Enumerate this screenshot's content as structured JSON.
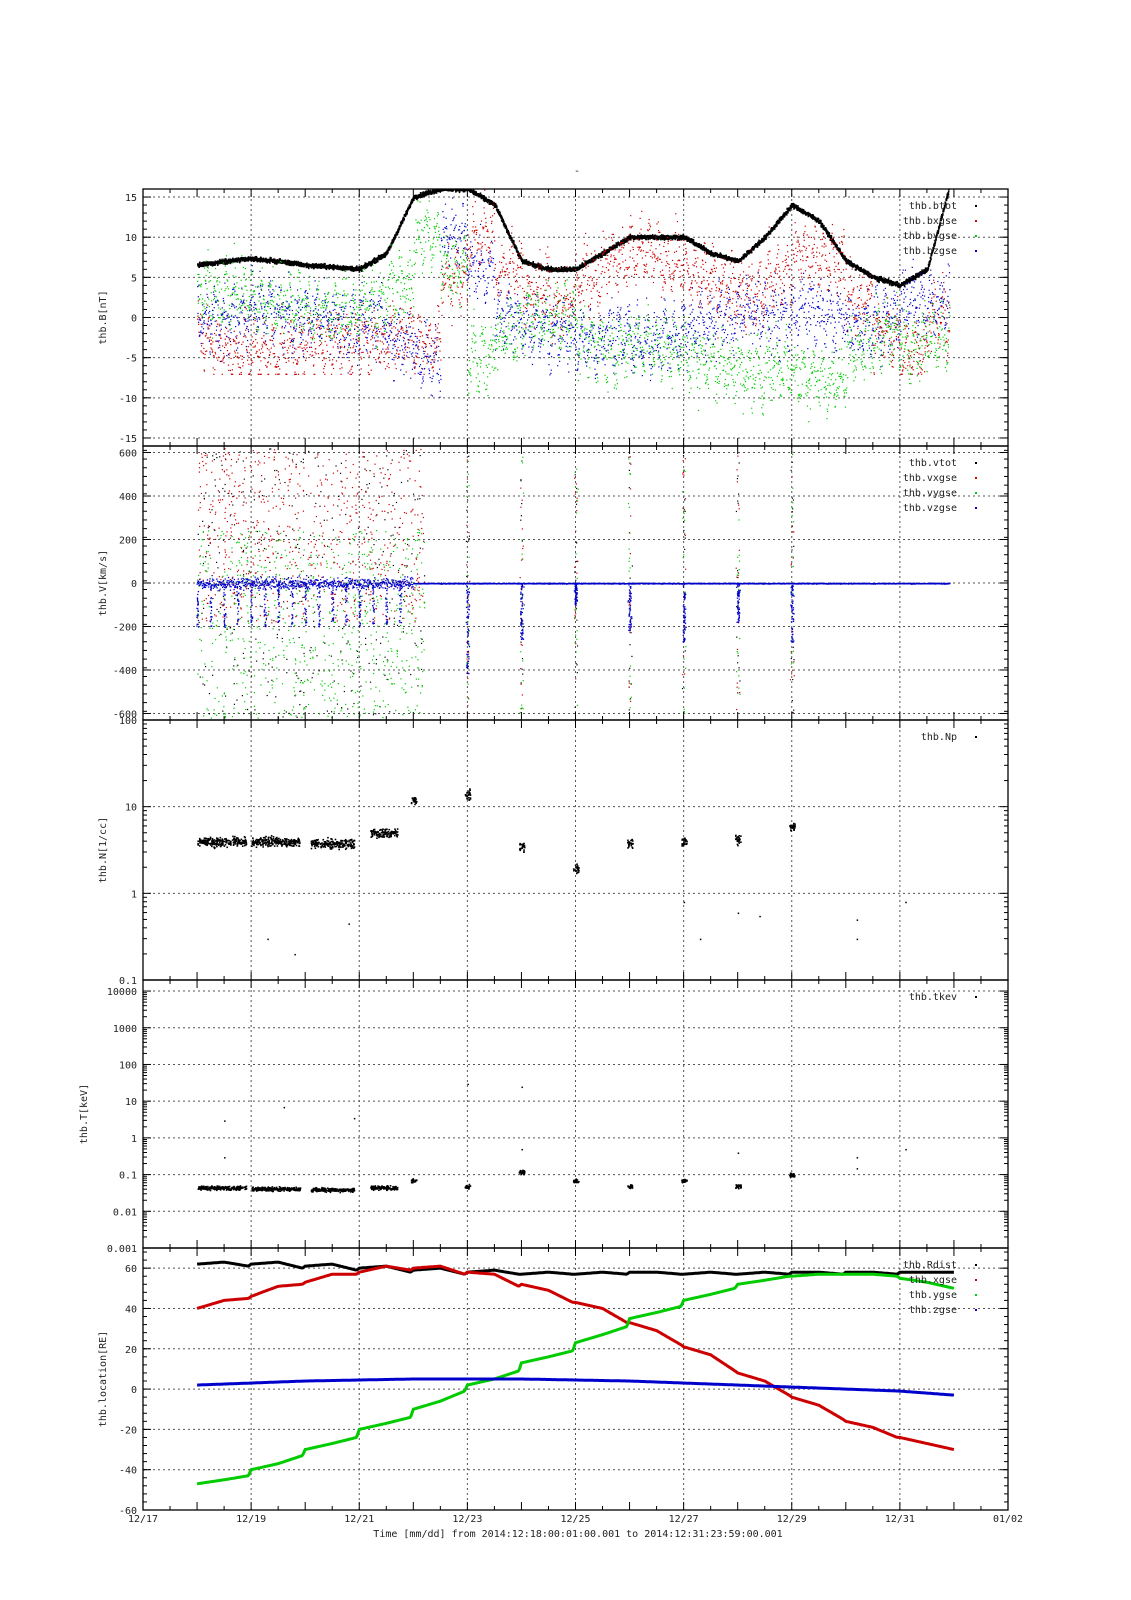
{
  "figure": {
    "title": "-",
    "xaxis_title": "Time [mm/dd]  from 2014:12:18:00:01:00.001  to  2014:12:31:23:59:00.001",
    "x_ticks": [
      "12/17",
      "12/19",
      "12/21",
      "12/23",
      "12/25",
      "12/27",
      "12/29",
      "12/31",
      "01/02"
    ],
    "x_range_days": [
      0,
      16
    ],
    "x_range_dates": [
      "2014-12-17",
      "2015-01-02"
    ],
    "data_span_days": [
      1,
      15
    ]
  },
  "colors": {
    "black": "#000000",
    "red": "#cc0000",
    "green": "#00cc00",
    "blue": "#0000cc"
  },
  "chart_data": [
    {
      "type": "scatter",
      "ylabel": "thb.B[nT]",
      "scale": "linear",
      "ylim": [
        -16,
        16
      ],
      "yticks": [
        "15",
        "10",
        "5",
        "0",
        "-5",
        "-10",
        "-15"
      ],
      "ytick_values": [
        15,
        10,
        5,
        0,
        -5,
        -10,
        -15
      ],
      "grid": true,
      "legend_position": "top-right",
      "series": [
        {
          "name": "thb.btot",
          "color": "black",
          "kind": "trace",
          "x": [
            "12/18",
            "12/18.5",
            "12/19",
            "12/19.5",
            "12/20",
            "12/20.5",
            "12/21",
            "12/21.5",
            "12/22",
            "12/22.5",
            "12/23",
            "12/23.5",
            "12/24",
            "12/24.5",
            "12/25",
            "12/25.5",
            "12/26",
            "12/26.5",
            "12/27",
            "12/27.5",
            "12/28",
            "12/28.5",
            "12/29",
            "12/29.5",
            "12/30",
            "12/30.5",
            "12/31",
            "12/31.5",
            "12/31.9"
          ],
          "y": [
            6.5,
            7,
            7.3,
            7,
            6.5,
            6.3,
            6,
            8,
            15,
            16,
            16,
            14,
            7,
            6,
            6,
            8,
            10,
            10,
            10,
            8,
            7,
            10,
            14,
            12,
            7,
            5,
            4,
            6,
            16
          ]
        },
        {
          "name": "thb.bxgse",
          "color": "red",
          "kind": "scatter",
          "y_band": [
            -7,
            16
          ],
          "center": [
            -3,
            -4,
            -4,
            -4,
            -3,
            -3,
            -3,
            -2,
            -3,
            5,
            10,
            6,
            4,
            2,
            5,
            7,
            8,
            7,
            5,
            4,
            3,
            5,
            8,
            7,
            2,
            -2,
            -4,
            0,
            10
          ]
        },
        {
          "name": "thb.bygse",
          "color": "green",
          "kind": "scatter",
          "y_band": [
            -14,
            16
          ],
          "center": [
            3,
            3,
            2,
            2,
            1,
            1,
            2,
            4,
            10,
            6,
            -5,
            -2,
            0,
            0,
            -3,
            -4,
            -3,
            -4,
            -5,
            -6,
            -7,
            -6,
            -7,
            -8,
            -4,
            -2,
            -3,
            -2,
            -1
          ]
        },
        {
          "name": "thb.bzgse",
          "color": "blue",
          "kind": "scatter",
          "y_band": [
            -15,
            16
          ],
          "center": [
            0,
            0,
            1,
            0,
            0,
            -1,
            0,
            -3,
            -5,
            10,
            6,
            0,
            -1,
            -2,
            -3,
            -2,
            -3,
            -2,
            -1,
            0,
            1,
            0,
            1,
            0,
            -1,
            0,
            2,
            2,
            3
          ]
        }
      ]
    },
    {
      "type": "scatter",
      "ylabel": "thb.V[km/s]",
      "scale": "linear",
      "ylim": [
        -630,
        630
      ],
      "yticks": [
        "600",
        "400",
        "200",
        "0",
        "-200",
        "-400",
        "-600"
      ],
      "ytick_values": [
        600,
        400,
        200,
        0,
        -200,
        -400,
        -600
      ],
      "grid": true,
      "legend_position": "top-right",
      "series": [
        {
          "name": "thb.vtot",
          "color": "black",
          "kind": "scatter",
          "active_until_day": 5.2
        },
        {
          "name": "thb.vxgse",
          "color": "red",
          "kind": "scatter",
          "active_until_day": 5.2
        },
        {
          "name": "thb.vygse",
          "color": "green",
          "kind": "scatter",
          "active_until_day": 5.2
        },
        {
          "name": "thb.vzgse",
          "color": "blue",
          "kind": "trace",
          "baseline": 0,
          "spread_before_day": 5.0,
          "spikes_day": [
            6.0,
            7.0,
            8.0,
            9.0,
            10.0,
            11.0,
            12.0
          ],
          "spike_min": [
            -420,
            -270,
            -100,
            -220,
            -270,
            -180,
            -270
          ]
        }
      ]
    },
    {
      "type": "scatter",
      "ylabel": "thb.N[1/cc]",
      "scale": "log",
      "ylim": [
        0.1,
        100
      ],
      "yticks": [
        "100",
        "10",
        "1",
        "0.1"
      ],
      "ytick_values": [
        100,
        10,
        1,
        0.1
      ],
      "grid": true,
      "legend_position": "top-right",
      "series": [
        {
          "name": "thb.Np",
          "color": "black",
          "clusters": [
            {
              "x_start": 1.0,
              "x_end": 1.9,
              "y": 4
            },
            {
              "x_start": 2.0,
              "x_end": 2.9,
              "y": 4
            },
            {
              "x_start": 3.1,
              "x_end": 3.9,
              "y": 3.8
            },
            {
              "x_start": 4.2,
              "x_end": 4.7,
              "y": 5
            },
            {
              "x_start": 4.95,
              "x_end": 5.05,
              "y": 12
            },
            {
              "x_start": 5.95,
              "x_end": 6.05,
              "y": 14
            },
            {
              "x_start": 6.95,
              "x_end": 7.05,
              "y": 3.5
            },
            {
              "x_start": 7.95,
              "x_end": 8.05,
              "y": 2
            },
            {
              "x_start": 8.95,
              "x_end": 9.05,
              "y": 3.8
            },
            {
              "x_start": 9.95,
              "x_end": 10.05,
              "y": 4
            },
            {
              "x_start": 10.95,
              "x_end": 11.05,
              "y": 4.2
            },
            {
              "x_start": 11.95,
              "x_end": 12.05,
              "y": 6
            }
          ],
          "outliers": [
            [
              2.3,
              0.3
            ],
            [
              2.8,
              0.2
            ],
            [
              3.8,
              0.45
            ],
            [
              13.2,
              0.3
            ],
            [
              13.2,
              0.5
            ],
            [
              14.1,
              0.8
            ],
            [
              10.3,
              0.3
            ],
            [
              10.0,
              0.8
            ],
            [
              11.4,
              0.55
            ],
            [
              11.0,
              0.6
            ]
          ]
        }
      ]
    },
    {
      "type": "scatter",
      "ylabel": "thb.T[keV]",
      "scale": "log",
      "ylim": [
        0.001,
        20000
      ],
      "yticks": [
        "10000",
        "1000",
        "100",
        "10",
        "1",
        "0.1",
        "0.01",
        "0.001"
      ],
      "ytick_values": [
        10000,
        1000,
        100,
        10,
        1,
        0.1,
        0.01,
        0.001
      ],
      "grid": true,
      "legend_position": "top-right",
      "series": [
        {
          "name": "thb.tkev",
          "color": "black",
          "clusters": [
            {
              "x_start": 1.0,
              "x_end": 1.9,
              "y": 0.045
            },
            {
              "x_start": 2.0,
              "x_end": 2.9,
              "y": 0.042
            },
            {
              "x_start": 3.1,
              "x_end": 3.9,
              "y": 0.04
            },
            {
              "x_start": 4.2,
              "x_end": 4.7,
              "y": 0.045
            },
            {
              "x_start": 4.95,
              "x_end": 5.05,
              "y": 0.07
            },
            {
              "x_start": 5.95,
              "x_end": 6.05,
              "y": 0.05
            },
            {
              "x_start": 6.95,
              "x_end": 7.05,
              "y": 0.12
            },
            {
              "x_start": 7.95,
              "x_end": 8.05,
              "y": 0.07
            },
            {
              "x_start": 8.95,
              "x_end": 9.05,
              "y": 0.05
            },
            {
              "x_start": 9.95,
              "x_end": 10.05,
              "y": 0.07
            },
            {
              "x_start": 10.95,
              "x_end": 11.05,
              "y": 0.05
            },
            {
              "x_start": 11.95,
              "x_end": 12.05,
              "y": 0.1
            }
          ],
          "outliers": [
            [
              1.5,
              3
            ],
            [
              1.5,
              0.3
            ],
            [
              2.6,
              7
            ],
            [
              3.9,
              3.5
            ],
            [
              6.0,
              30
            ],
            [
              7.0,
              25
            ],
            [
              7.0,
              0.5
            ],
            [
              11.0,
              0.4
            ],
            [
              13.2,
              0.3
            ],
            [
              14.1,
              0.5
            ],
            [
              13.2,
              0.15
            ]
          ]
        }
      ]
    },
    {
      "type": "line",
      "ylabel": "thb.location[RE]",
      "scale": "linear",
      "ylim": [
        -60,
        70
      ],
      "yticks": [
        "60",
        "40",
        "20",
        "0",
        "-20",
        "-40",
        "-60"
      ],
      "ytick_values": [
        60,
        40,
        20,
        0,
        -20,
        -40,
        -60
      ],
      "grid": true,
      "legend_position": "top-right",
      "series": [
        {
          "name": "thb.Rdist",
          "color": "black",
          "x": [
            1.0,
            1.5,
            1.95,
            2.0,
            2.5,
            2.95,
            3.0,
            3.5,
            3.95,
            4.0,
            4.5,
            4.95,
            5.0,
            5.5,
            5.95,
            6.0,
            6.5,
            6.95,
            7.0,
            7.5,
            7.95,
            8.0,
            8.5,
            8.95,
            9.0,
            9.5,
            9.95,
            10.0,
            10.5,
            10.95,
            11.0,
            11.5,
            11.95,
            12.0,
            12.5,
            12.95,
            13.0,
            13.5,
            13.95,
            14.0,
            14.5,
            15.0
          ],
          "y": [
            62,
            63,
            61,
            62,
            63,
            60,
            61,
            62,
            59,
            60,
            61,
            58,
            59,
            60,
            57,
            58,
            59,
            57,
            57,
            58,
            57,
            57,
            58,
            57,
            58,
            58,
            57,
            57,
            58,
            57,
            57,
            58,
            57,
            58,
            58,
            57,
            58,
            58,
            57,
            58,
            58,
            58
          ]
        },
        {
          "name": "thb.xgse",
          "color": "red",
          "x": [
            1.0,
            1.5,
            1.95,
            2.0,
            2.5,
            2.95,
            3.0,
            3.5,
            3.95,
            4.0,
            4.5,
            4.95,
            5.0,
            5.5,
            5.95,
            6.0,
            6.5,
            6.95,
            7.0,
            7.5,
            7.95,
            8.0,
            8.5,
            8.95,
            9.0,
            9.5,
            9.95,
            10.0,
            10.5,
            10.95,
            11.0,
            11.5,
            11.95,
            12.0,
            12.5,
            12.95,
            13.0,
            13.5,
            13.95,
            14.0,
            14.5,
            15.0
          ],
          "y": [
            40,
            44,
            45,
            46,
            51,
            52,
            53,
            57,
            57,
            58,
            61,
            59,
            60,
            61,
            57,
            58,
            57,
            51,
            52,
            49,
            43,
            43,
            40,
            33,
            33,
            29,
            22,
            21,
            17,
            9,
            8,
            4,
            -3,
            -4,
            -8,
            -15,
            -16,
            -19,
            -24,
            -24,
            -27,
            -30
          ]
        },
        {
          "name": "thb.ygse",
          "color": "green",
          "x": [
            1.0,
            1.5,
            1.95,
            2.0,
            2.5,
            2.95,
            3.0,
            3.5,
            3.95,
            4.0,
            4.5,
            4.95,
            5.0,
            5.5,
            5.95,
            6.0,
            6.5,
            6.95,
            7.0,
            7.5,
            7.95,
            8.0,
            8.5,
            8.95,
            9.0,
            9.5,
            9.95,
            10.0,
            10.5,
            10.95,
            11.0,
            11.5,
            11.95,
            12.0,
            12.5,
            12.95,
            13.0,
            13.5,
            13.95,
            14.0,
            14.5,
            15.0
          ],
          "y": [
            -47,
            -45,
            -43,
            -40,
            -37,
            -33,
            -30,
            -27,
            -24,
            -20,
            -17,
            -14,
            -10,
            -6,
            -1,
            2,
            5,
            9,
            13,
            16,
            19,
            23,
            27,
            31,
            35,
            38,
            41,
            44,
            47,
            50,
            52,
            54,
            56,
            56,
            57,
            57,
            57,
            57,
            56,
            55,
            53,
            50
          ]
        },
        {
          "name": "thb.zgse",
          "color": "blue",
          "x": [
            1.0,
            2.0,
            3.0,
            4.0,
            5.0,
            6.0,
            7.0,
            8.0,
            9.0,
            10.0,
            11.0,
            12.0,
            13.0,
            14.0,
            15.0
          ],
          "y": [
            2,
            3,
            4,
            4.5,
            5,
            5,
            5,
            4.5,
            4,
            3,
            2,
            1,
            0,
            -1,
            -3
          ]
        }
      ]
    }
  ]
}
